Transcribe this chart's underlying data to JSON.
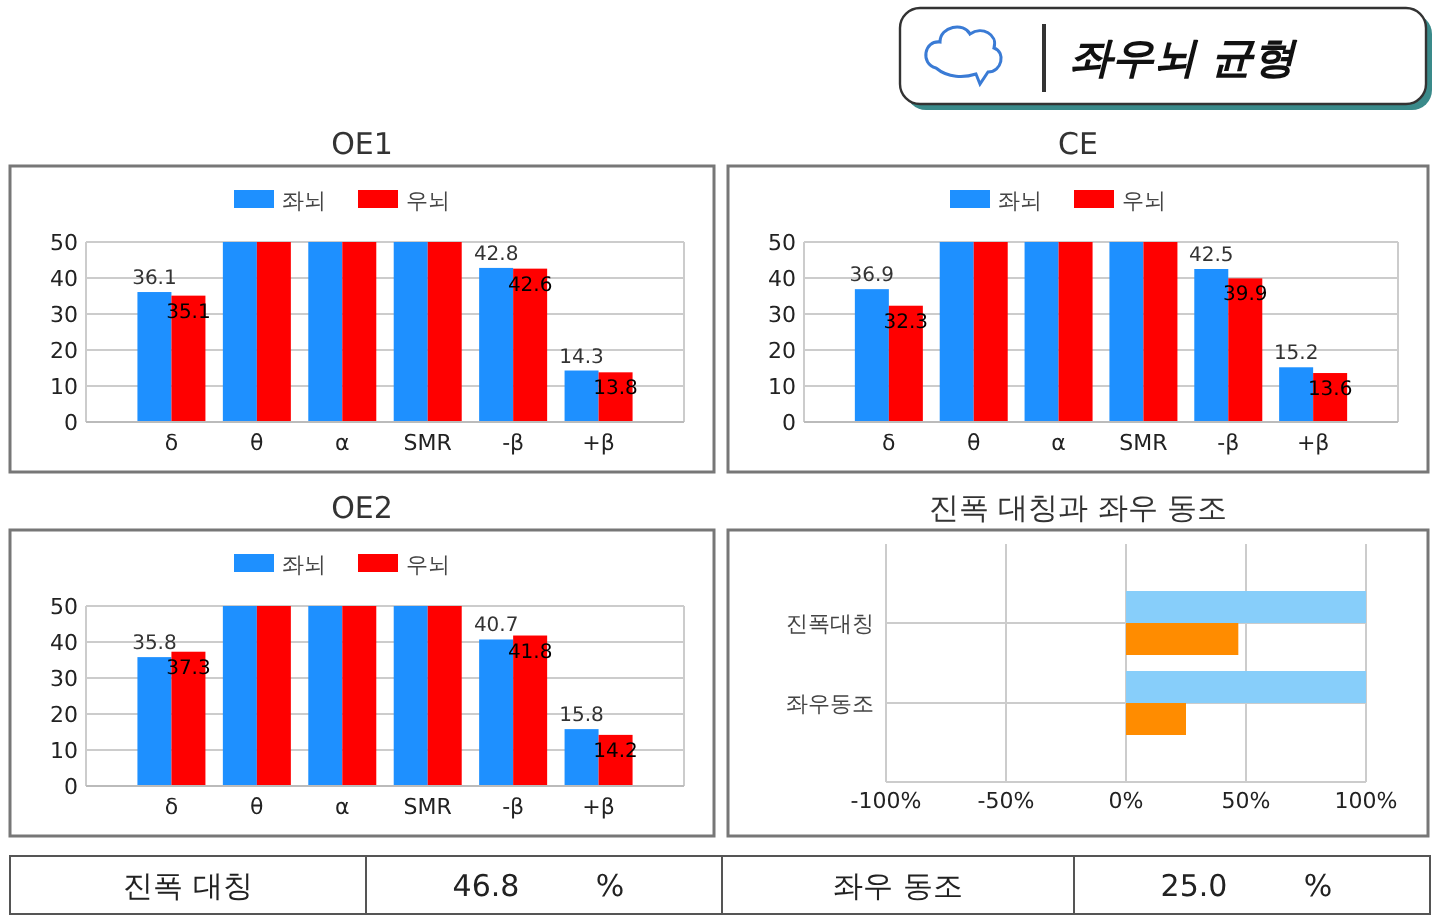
{
  "chart_data": [
    {
      "type": "other",
      "title": "좌우뇌 균형"
    },
    {
      "type": "bar",
      "title": "OE1",
      "categories": [
        "δ",
        "θ",
        "α",
        "SMR",
        "-β",
        "+β"
      ],
      "series": [
        {
          "name": "좌뇌",
          "color": "#1e90ff",
          "values": [
            36.1,
            50,
            50,
            50,
            42.8,
            14.3
          ],
          "value_labels": [
            "36.1",
            null,
            null,
            null,
            "42.8",
            "14.3"
          ]
        },
        {
          "name": "우뇌",
          "color": "#ff0000",
          "values": [
            35.1,
            50,
            50,
            50,
            42.6,
            13.8
          ],
          "value_labels": [
            "35.1",
            null,
            null,
            null,
            "42.6",
            "13.8"
          ]
        }
      ],
      "ylim": [
        0,
        50
      ],
      "yticks": [
        0,
        10,
        20,
        30,
        40,
        50
      ],
      "grid": "y",
      "legend": "top"
    },
    {
      "type": "bar",
      "title": "CE",
      "categories": [
        "δ",
        "θ",
        "α",
        "SMR",
        "-β",
        "+β"
      ],
      "series": [
        {
          "name": "좌뇌",
          "color": "#1e90ff",
          "values": [
            36.9,
            50,
            50,
            50,
            42.5,
            15.2
          ],
          "value_labels": [
            "36.9",
            null,
            null,
            null,
            "42.5",
            "15.2"
          ]
        },
        {
          "name": "우뇌",
          "color": "#ff0000",
          "values": [
            32.3,
            50,
            50,
            50,
            39.9,
            13.6
          ],
          "value_labels": [
            "32.3",
            null,
            null,
            null,
            "39.9",
            "13.6"
          ]
        }
      ],
      "ylim": [
        0,
        50
      ],
      "yticks": [
        0,
        10,
        20,
        30,
        40,
        50
      ],
      "grid": "y",
      "legend": "top"
    },
    {
      "type": "bar",
      "title": "OE2",
      "categories": [
        "δ",
        "θ",
        "α",
        "SMR",
        "-β",
        "+β"
      ],
      "series": [
        {
          "name": "좌뇌",
          "color": "#1e90ff",
          "values": [
            35.8,
            50,
            50,
            50,
            40.7,
            15.8
          ],
          "value_labels": [
            "35.8",
            null,
            null,
            null,
            "40.7",
            "15.8"
          ]
        },
        {
          "name": "우뇌",
          "color": "#ff0000",
          "values": [
            37.3,
            50,
            50,
            50,
            41.8,
            14.2
          ],
          "value_labels": [
            "37.3",
            null,
            null,
            null,
            "41.8",
            "14.2"
          ]
        }
      ],
      "ylim": [
        0,
        50
      ],
      "yticks": [
        0,
        10,
        20,
        30,
        40,
        50
      ],
      "grid": "y",
      "legend": "top"
    },
    {
      "type": "bar",
      "orientation": "horizontal",
      "title": "진폭 대칭과 좌우 동조",
      "categories": [
        "진폭대칭",
        "좌우동조"
      ],
      "series": [
        {
          "color": "#87cefa",
          "values": [
            100,
            100
          ]
        },
        {
          "color": "#ff8c00",
          "values": [
            46.8,
            25.0
          ]
        }
      ],
      "xlim": [
        -100,
        100
      ],
      "xticks": [
        {
          "value": -100,
          "label": "-100%"
        },
        {
          "value": -50,
          "label": "-50%"
        },
        {
          "value": 0,
          "label": "0%"
        },
        {
          "value": 50,
          "label": "50%"
        },
        {
          "value": 100,
          "label": "100%"
        }
      ],
      "grid": true
    },
    {
      "type": "other",
      "annotations": [
        "진폭 대칭",
        "46.8",
        "%",
        "좌우 동조",
        "25.0",
        "%"
      ]
    }
  ]
}
